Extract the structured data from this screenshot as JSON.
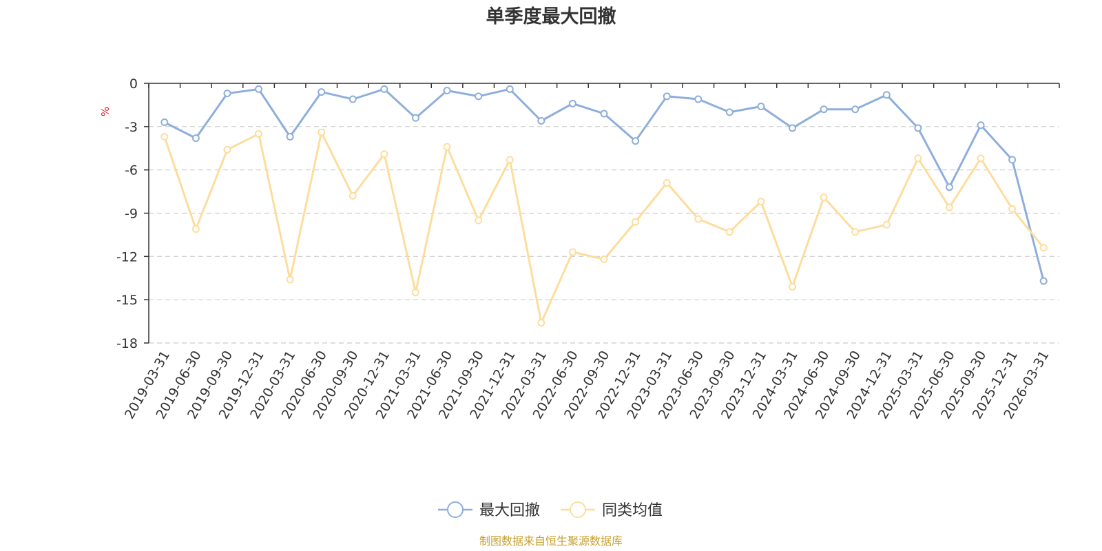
{
  "chart_data": {
    "type": "line",
    "title": "单季度最大回撤",
    "ylabel": "%",
    "xlabel": "",
    "ylim": [
      -18,
      0
    ],
    "yticks": [
      0,
      -3,
      -6,
      -9,
      -12,
      -15,
      -18
    ],
    "grid": true,
    "legend_position": "bottom-center",
    "categories": [
      "2019-03-31",
      "2019-06-30",
      "2019-09-30",
      "2019-12-31",
      "2020-03-31",
      "2020-06-30",
      "2020-09-30",
      "2020-12-31",
      "2021-03-31",
      "2021-06-30",
      "2021-09-30",
      "2021-12-31",
      "2022-03-31",
      "2022-06-30",
      "2022-09-30",
      "2022-12-31",
      "2023-03-31",
      "2023-06-30",
      "2023-09-30",
      "2023-12-31",
      "2024-03-31",
      "2024-06-30",
      "2024-09-30",
      "2024-12-31",
      "2025-03-31",
      "2025-06-30",
      "2025-09-30",
      "2025-12-31",
      "2026-03-31"
    ],
    "series": [
      {
        "name": "最大回撤",
        "color": "#8eaedb",
        "values": [
          -2.7,
          -3.8,
          -0.7,
          -0.4,
          -3.7,
          -0.6,
          -1.1,
          -0.4,
          -2.4,
          -0.5,
          -0.9,
          -0.4,
          -2.6,
          -1.4,
          -2.1,
          -4.0,
          -0.9,
          -1.1,
          -2.0,
          -1.6,
          -3.1,
          -1.8,
          -1.8,
          -0.8,
          -3.1,
          -7.2,
          -2.9,
          -5.3,
          -13.7
        ]
      },
      {
        "name": "同类均值",
        "color": "#fddd9d",
        "values": [
          -3.7,
          -10.1,
          -4.6,
          -3.5,
          -13.6,
          -3.4,
          -7.8,
          -4.9,
          -14.5,
          -4.4,
          -9.5,
          -5.3,
          -16.6,
          -11.7,
          -12.2,
          -9.6,
          -6.9,
          -9.4,
          -10.3,
          -8.2,
          -14.1,
          -7.9,
          -10.3,
          -9.8,
          -5.2,
          -8.6,
          -5.2,
          -8.7,
          -11.4
        ]
      }
    ]
  },
  "source_text": "制图数据来自恒生聚源数据库",
  "colors": {
    "axis": "#333333",
    "grid": "#cccccc",
    "unit": "#e02020",
    "source": "#c8a030"
  }
}
